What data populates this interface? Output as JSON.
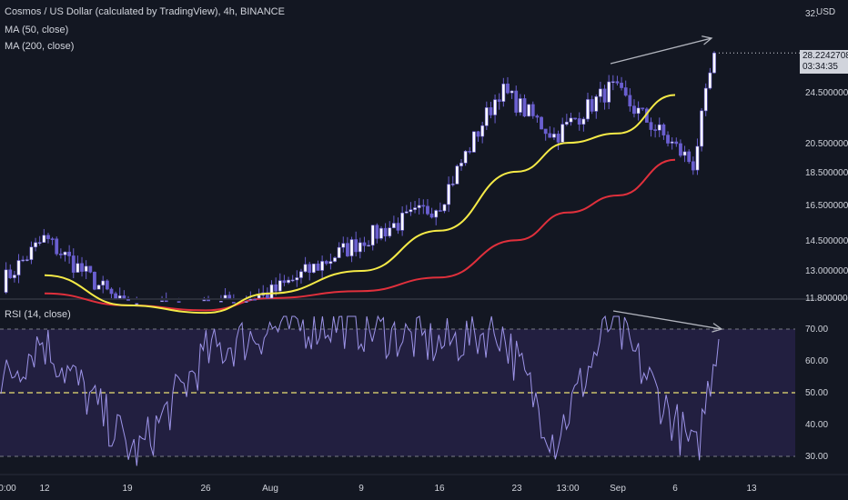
{
  "header": {
    "title": "Cosmos / US Dollar (calculated by TradingView), 4h, BINANCE",
    "ma50_label": "MA (50, close)",
    "ma200_label": "MA (200, close)",
    "rsi_label": "RSI (14, close)",
    "currency": "USD"
  },
  "price_badge": {
    "price": "28.2242708",
    "countdown": "03:34:35"
  },
  "colors": {
    "background": "#131722",
    "candle": "#ffffff",
    "candle_outline": "#6a5fd0",
    "ma50": "#f5ea47",
    "ma200": "#e0303c",
    "rsi_line": "#9d94e8",
    "rsi_band": "#221f40",
    "trend_line": "#b2b5be"
  },
  "chart_data": [
    {
      "type": "candlestick",
      "title": "Cosmos / US Dollar (calculated by TradingView), 4h, BINANCE",
      "y_axis_ticks": [
        "32.",
        "28.2242708",
        "24.5000000",
        "20.5000000",
        "18.5000000",
        "16.5000000",
        "14.5000000",
        "13.0000000",
        "11.8000000"
      ],
      "y_axis_scale": "log",
      "x_axis_ticks": [
        "0:00",
        "12",
        "19",
        "26",
        "Aug",
        "9",
        "16",
        "23",
        "13:00",
        "Sep",
        "6",
        "13"
      ],
      "series": [
        {
          "name": "MA (50, close)",
          "x": [
            "12",
            "19",
            "26",
            "Aug",
            "9",
            "16",
            "23",
            "13:00",
            "Sep",
            "6"
          ],
          "values": [
            12.8,
            11.5,
            11.2,
            12.0,
            13.0,
            15.0,
            18.5,
            20.5,
            21.2,
            24.3
          ]
        },
        {
          "name": "MA (200, close)",
          "x": [
            "12",
            "19",
            "26",
            "Aug",
            "9",
            "16",
            "23",
            "13:00",
            "Sep",
            "6"
          ],
          "values": [
            12.0,
            11.5,
            11.3,
            11.8,
            12.1,
            12.7,
            14.5,
            16.0,
            17.0,
            19.3
          ]
        },
        {
          "name": "close",
          "x": [
            "0:00",
            "12",
            "19",
            "26",
            "Aug",
            "9",
            "16",
            "23",
            "13:00",
            "Sep",
            "6",
            "end"
          ],
          "values": [
            12.4,
            14.6,
            11.3,
            11.4,
            12.0,
            14.5,
            16.5,
            24.8,
            21.0,
            25.0,
            19.0,
            28.22
          ]
        }
      ],
      "last_price": 28.2242708
    },
    {
      "type": "line",
      "title": "RSI (14, close)",
      "y_axis_ticks": [
        "70.00",
        "60.00",
        "50.00",
        "40.00",
        "30.00"
      ],
      "ylim": [
        26,
        74
      ],
      "series": [
        {
          "name": "RSI (14, close)",
          "x": [
            "0:00",
            "12",
            "19",
            "26",
            "Aug",
            "9",
            "16",
            "23",
            "13:00",
            "Sep",
            "6",
            "end"
          ],
          "values": [
            52,
            67,
            30,
            62,
            70,
            72,
            65,
            70,
            35,
            73,
            30,
            70
          ]
        }
      ]
    }
  ]
}
